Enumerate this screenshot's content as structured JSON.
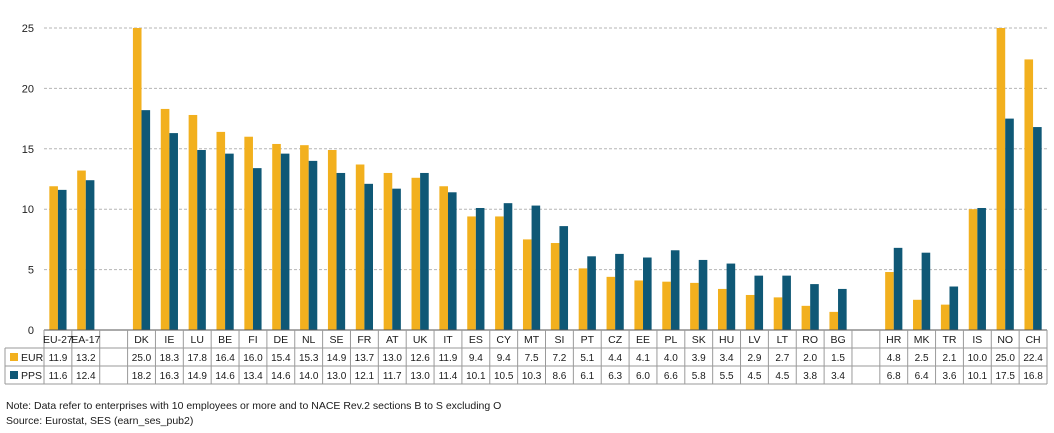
{
  "chart_data": {
    "type": "bar",
    "categories": [
      "EU-27",
      "EA-17",
      "",
      "DK",
      "IE",
      "LU",
      "BE",
      "FI",
      "DE",
      "NL",
      "SE",
      "FR",
      "AT",
      "UK",
      "IT",
      "ES",
      "CY",
      "MT",
      "SI",
      "PT",
      "CZ",
      "EE",
      "PL",
      "SK",
      "HU",
      "LV",
      "LT",
      "RO",
      "BG",
      "",
      "HR",
      "MK",
      "TR",
      "IS",
      "NO",
      "CH"
    ],
    "series": [
      {
        "name": "EUR",
        "color": "#f2b01e",
        "values": [
          11.9,
          13.2,
          null,
          25.0,
          18.3,
          17.8,
          16.4,
          16.0,
          15.4,
          15.3,
          14.9,
          13.7,
          13.0,
          12.6,
          11.9,
          9.4,
          9.4,
          7.5,
          7.2,
          5.1,
          4.4,
          4.1,
          4.0,
          3.9,
          3.4,
          2.9,
          2.7,
          2.0,
          1.5,
          null,
          4.8,
          2.5,
          2.1,
          10.0,
          25.0,
          22.4
        ],
        "labels": [
          "11.9",
          "13.2",
          "",
          "25.0",
          "18.3",
          "17.8",
          "16.4",
          "16.0",
          "15.4",
          "15.3",
          "14.9",
          "13.7",
          "13.0",
          "12.6",
          "11.9",
          "9.4",
          "9.4",
          "7.5",
          "7.2",
          "5.1",
          "4.4",
          "4.1",
          "4.0",
          "3.9",
          "3.4",
          "2.9",
          "2.7",
          "2.0",
          "1.5",
          "",
          "4.8",
          "2.5",
          "2.1",
          "10.0",
          "25.0",
          "22.4"
        ]
      },
      {
        "name": "PPS",
        "color": "#0f5876",
        "values": [
          11.6,
          12.4,
          null,
          18.2,
          16.3,
          14.9,
          14.6,
          13.4,
          14.6,
          14.0,
          13.0,
          12.1,
          11.7,
          13.0,
          11.4,
          10.1,
          10.5,
          10.3,
          8.6,
          6.1,
          6.3,
          6.0,
          6.6,
          5.8,
          5.5,
          4.5,
          4.5,
          3.8,
          3.4,
          null,
          6.8,
          6.4,
          3.6,
          10.1,
          17.5,
          16.8
        ],
        "labels": [
          "11.6",
          "12.4",
          "",
          "18.2",
          "16.3",
          "14.9",
          "14.6",
          "13.4",
          "14.6",
          "14.0",
          "13.0",
          "12.1",
          "11.7",
          "13.0",
          "11.4",
          "10.1",
          "10.5",
          "10.3",
          "8.6",
          "6.1",
          "6.3",
          "6.0",
          "6.6",
          "5.8",
          "5.5",
          "4.5",
          "4.5",
          "3.8",
          "3.4",
          "",
          "6.8",
          "6.4",
          "3.6",
          "10.1",
          "17.5",
          "16.8"
        ]
      }
    ],
    "y_ticks": [
      "0",
      "5",
      "10",
      "15",
      "20",
      "25"
    ],
    "ylim": [
      0,
      25
    ],
    "grid": true,
    "legend": "data-table-left",
    "title": "",
    "xlabel": "",
    "ylabel": ""
  },
  "note": "Note: Data refer to enterprises with 10 employees or more and to NACE Rev.2 sections B to S excluding O",
  "source": "Source: Eurostat, SES (earn_ses_pub2)"
}
